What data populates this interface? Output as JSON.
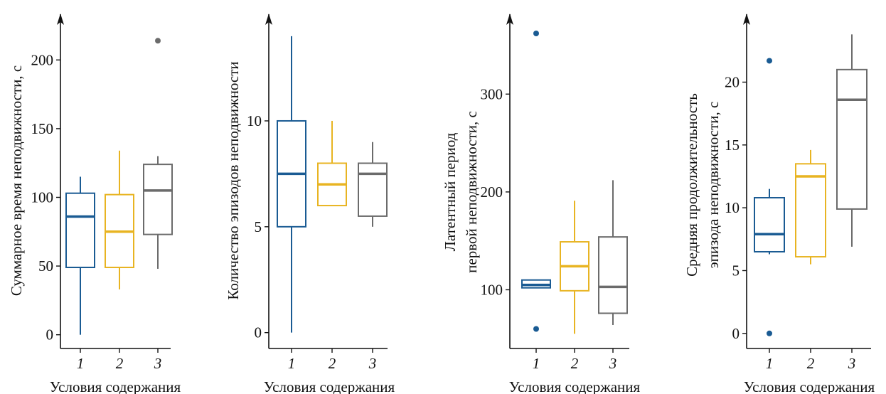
{
  "colors": {
    "1": "#1a5b93",
    "2": "#e8b422",
    "3": "#6b6b6b",
    "axis": "#111111"
  },
  "chart_data": [
    {
      "type": "box",
      "ylabel_lines": [
        "Суммарное время неподвижности, с"
      ],
      "xlabel": "Условия содержания",
      "categories": [
        "1",
        "2",
        "3"
      ],
      "ylim": [
        -10,
        225
      ],
      "yticks": [
        0,
        50,
        100,
        150,
        200
      ],
      "boxes": [
        {
          "cat": "1",
          "whisker_low": 0,
          "q1": 49,
          "median": 86,
          "q3": 103,
          "whisker_high": 115,
          "outliers": []
        },
        {
          "cat": "2",
          "whisker_low": 33,
          "q1": 49,
          "median": 75,
          "q3": 102,
          "whisker_high": 134,
          "outliers": []
        },
        {
          "cat": "3",
          "whisker_low": 48,
          "q1": 73,
          "median": 105,
          "q3": 124,
          "whisker_high": 130,
          "outliers": [
            214
          ]
        }
      ]
    },
    {
      "type": "box",
      "ylabel_lines": [
        "Количество эпизодов неподвижности"
      ],
      "xlabel": "Условия содержания",
      "categories": [
        "1",
        "2",
        "3"
      ],
      "ylim": [
        -0.75,
        14.5
      ],
      "yticks": [
        0,
        5,
        10
      ],
      "boxes": [
        {
          "cat": "1",
          "whisker_low": 0,
          "q1": 5,
          "median": 7.5,
          "q3": 10,
          "whisker_high": 14,
          "outliers": []
        },
        {
          "cat": "2",
          "whisker_low": 6,
          "q1": 6,
          "median": 7,
          "q3": 8,
          "whisker_high": 10,
          "outliers": []
        },
        {
          "cat": "3",
          "whisker_low": 5,
          "q1": 5.5,
          "median": 7.5,
          "q3": 8,
          "whisker_high": 9,
          "outliers": []
        }
      ]
    },
    {
      "type": "box",
      "ylabel_lines": [
        "Латентный период",
        "первой неподвижности, с"
      ],
      "xlabel": "Условия содержания",
      "categories": [
        "1",
        "2",
        "3"
      ],
      "ylim": [
        40,
        370
      ],
      "yticks": [
        100,
        200,
        300
      ],
      "boxes": [
        {
          "cat": "1",
          "whisker_low": 102,
          "q1": 102,
          "median": 105,
          "q3": 110,
          "whisker_high": 110,
          "outliers": [
            60,
            362
          ]
        },
        {
          "cat": "2",
          "whisker_low": 55,
          "q1": 99,
          "median": 124,
          "q3": 149,
          "whisker_high": 191,
          "outliers": []
        },
        {
          "cat": "3",
          "whisker_low": 64,
          "q1": 76,
          "median": 103,
          "q3": 154,
          "whisker_high": 212,
          "outliers": []
        }
      ]
    },
    {
      "type": "box",
      "ylabel_lines": [
        "Средняя продолжительность",
        "эпизода неподвижности, с"
      ],
      "xlabel": "Условия содержания",
      "categories": [
        "1",
        "2",
        "3"
      ],
      "ylim": [
        -1.2,
        24.5
      ],
      "yticks": [
        0,
        5,
        10,
        15,
        20
      ],
      "boxes": [
        {
          "cat": "1",
          "whisker_low": 6.3,
          "q1": 6.5,
          "median": 7.9,
          "q3": 10.8,
          "whisker_high": 11.5,
          "outliers": [
            0,
            21.7
          ]
        },
        {
          "cat": "2",
          "whisker_low": 5.5,
          "q1": 6.1,
          "median": 12.5,
          "q3": 13.5,
          "whisker_high": 14.6,
          "outliers": []
        },
        {
          "cat": "3",
          "whisker_low": 6.9,
          "q1": 9.9,
          "median": 18.6,
          "q3": 21.0,
          "whisker_high": 23.8,
          "outliers": []
        }
      ]
    }
  ]
}
